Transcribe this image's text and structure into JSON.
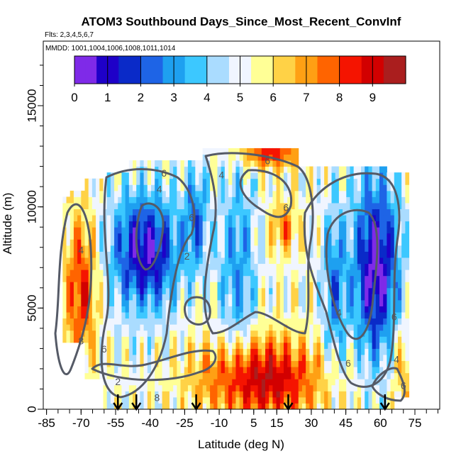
{
  "chart_data": {
    "type": "heatmap",
    "title": "ATOM3 Southbound Days_Since_Most_Recent_ConvInf",
    "subtitle": "Flts: 2,3,4,5,6,7",
    "annotation": "MMDD: 1001,1004,1006,1008,1011,1014",
    "xlabel": "Latitude (deg N)",
    "ylabel": "Altitude (m)",
    "xlim": [
      -85,
      85
    ],
    "ylim": [
      0,
      17500
    ],
    "x_ticks": [
      -85,
      -70,
      -55,
      -40,
      -25,
      -10,
      5,
      15,
      30,
      45,
      60,
      75
    ],
    "x_tick_labels": [
      "-85",
      "-70",
      "-55",
      "-40",
      "-25",
      "-10",
      "5",
      "15",
      "30",
      "45",
      "60",
      "75"
    ],
    "y_ticks": [
      0,
      5000,
      10000,
      15000
    ],
    "y_tick_labels": [
      "0",
      "5000",
      "10000",
      "15000"
    ],
    "colorbar": {
      "min": 0,
      "max": 10,
      "ticks": [
        0,
        1,
        2,
        3,
        4,
        5,
        6,
        7,
        8,
        9
      ],
      "tick_labels": [
        "0",
        "1",
        "2",
        "3",
        "4",
        "5",
        "6",
        "7",
        "8",
        "9"
      ],
      "colors": [
        "#7f2ae8",
        "#1e00c8",
        "#0a2ac8",
        "#1e64e6",
        "#1ea0f0",
        "#3cc8ff",
        "#aadcff",
        "#f0f5ff",
        "#ffff96",
        "#ffd246",
        "#ffa014",
        "#ff6400",
        "#f51400",
        "#d20000",
        "#aa1e1e"
      ]
    },
    "contour_levels": [
      2,
      4,
      6,
      8
    ],
    "contour_labels": [
      {
        "text": "6",
        "lat": -22,
        "alt": 9300
      },
      {
        "text": "2",
        "lat": -24,
        "alt": 7400
      },
      {
        "text": "4",
        "lat": -36,
        "alt": 10700
      },
      {
        "text": "6",
        "lat": -34,
        "alt": 11500
      },
      {
        "text": "4",
        "lat": -9,
        "alt": 11400
      },
      {
        "text": "6",
        "lat": 11,
        "alt": 12100
      },
      {
        "text": "6",
        "lat": 19,
        "alt": 9800
      },
      {
        "text": "4",
        "lat": 42,
        "alt": 4600
      },
      {
        "text": "6",
        "lat": 46,
        "alt": 2100
      },
      {
        "text": "6",
        "lat": 66,
        "alt": 4400
      },
      {
        "text": "4",
        "lat": 67,
        "alt": 2300
      },
      {
        "text": "6",
        "lat": 70,
        "alt": 1000
      },
      {
        "text": "8",
        "lat": -70,
        "alt": 3200
      },
      {
        "text": "6",
        "lat": -60,
        "alt": 2800
      },
      {
        "text": "8",
        "lat": -37,
        "alt": 400
      },
      {
        "text": "2",
        "lat": -54,
        "alt": 1200
      },
      {
        "text": "4",
        "lat": -70,
        "alt": 7700
      }
    ],
    "arrow_latitudes": [
      -54,
      -46,
      -20,
      20,
      62
    ],
    "regions_description_values": [
      {
        "lat_range": [
          -76,
          -62
        ],
        "alt_range": [
          500,
          10500
        ],
        "value_range": [
          2,
          9
        ]
      },
      {
        "lat_range": [
          -55,
          -24
        ],
        "alt_range": [
          5000,
          10000
        ],
        "value_range": [
          0,
          3
        ]
      },
      {
        "lat_range": [
          -20,
          40
        ],
        "alt_range": [
          0,
          4000
        ],
        "value_range": [
          8,
          9.5
        ]
      },
      {
        "lat_range": [
          0,
          25
        ],
        "alt_range": [
          12000,
          13200
        ],
        "value_range": [
          7,
          9
        ]
      },
      {
        "lat_range": [
          45,
          70
        ],
        "alt_range": [
          3500,
          11500
        ],
        "value_range": [
          0,
          3
        ]
      }
    ]
  }
}
